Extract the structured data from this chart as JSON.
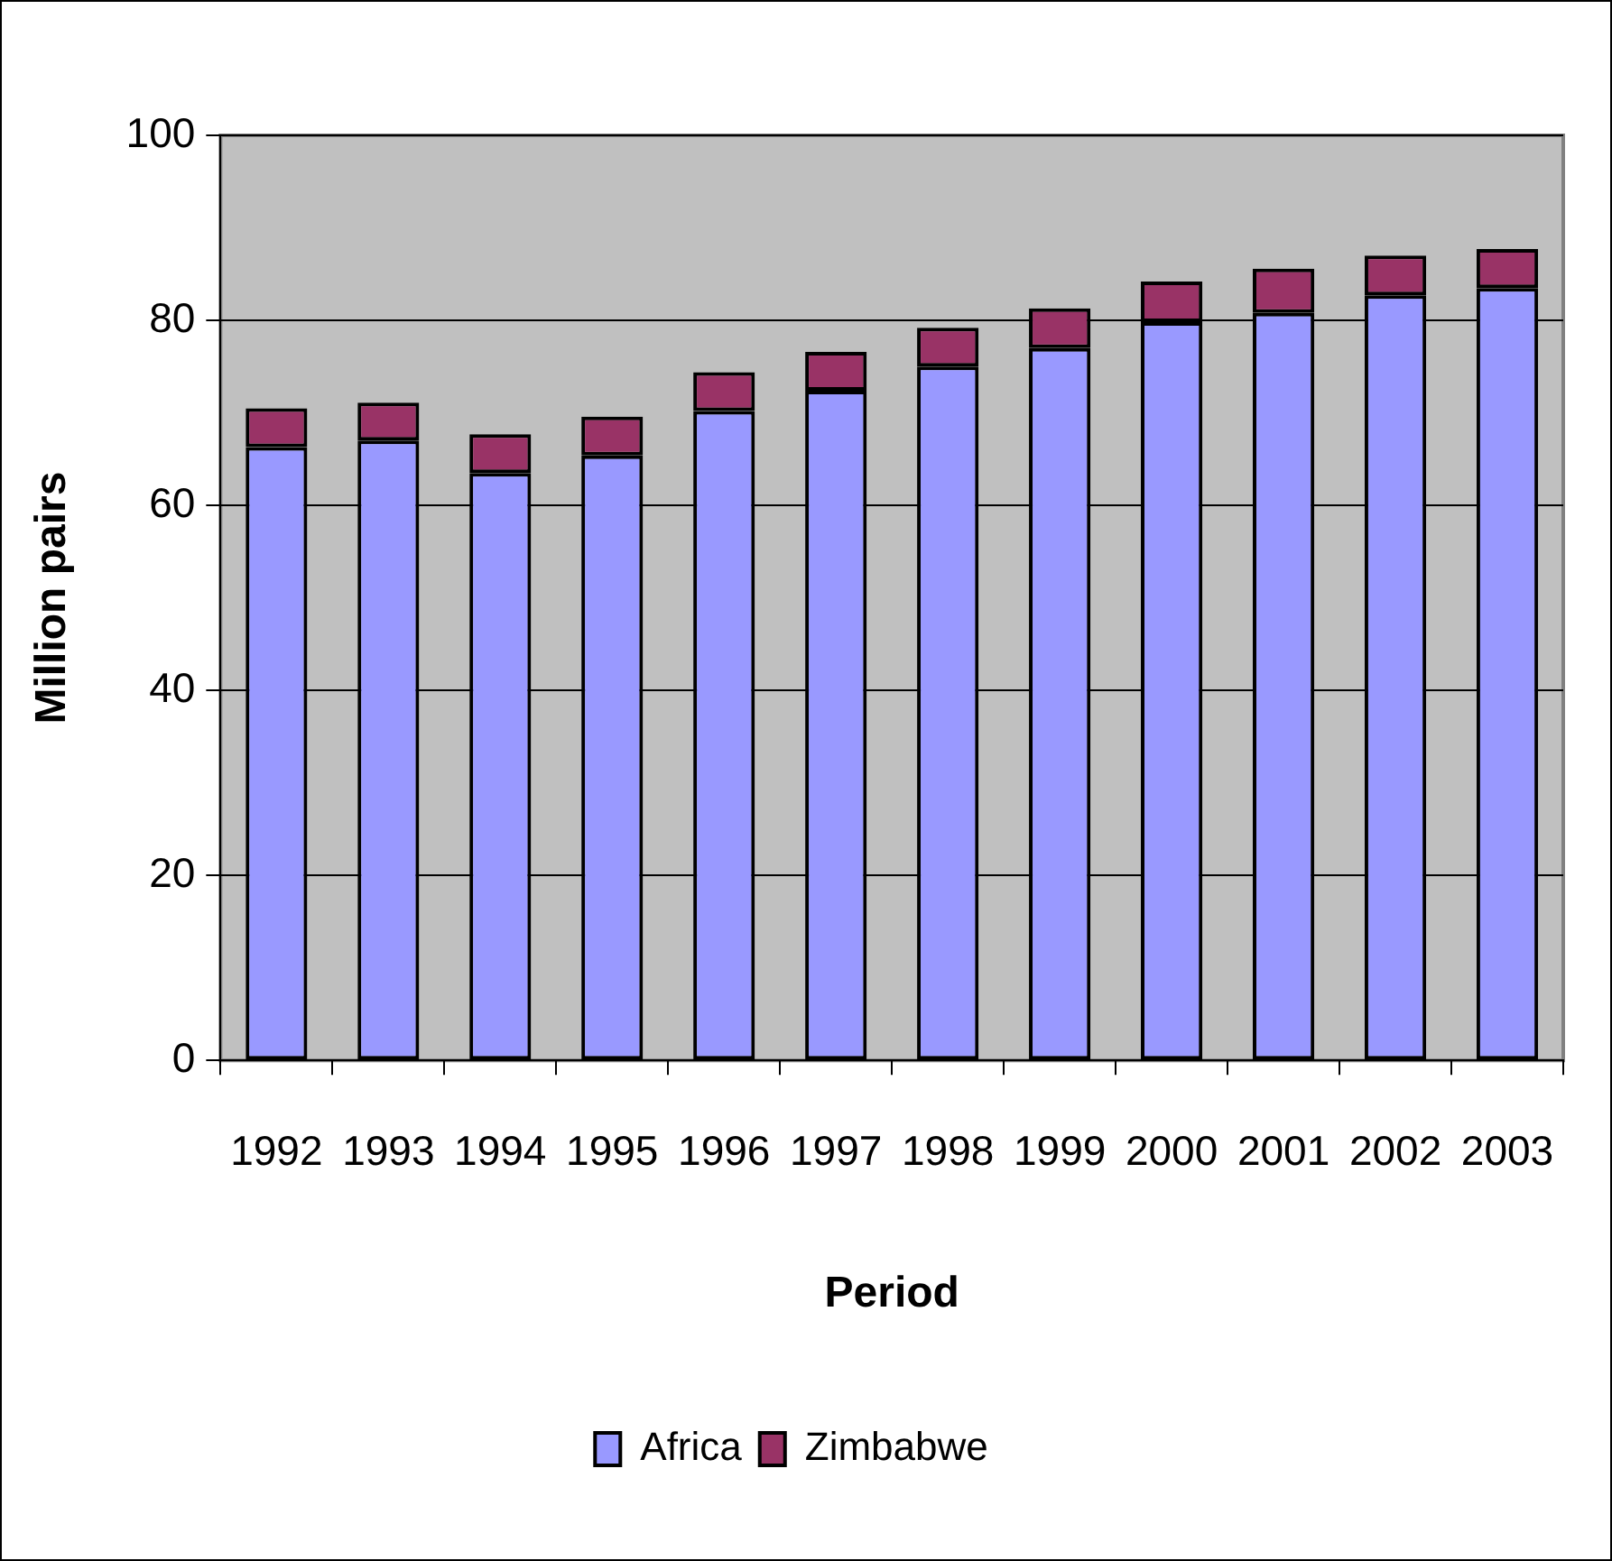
{
  "chart_data": {
    "type": "bar",
    "stacked": true,
    "xlabel": "Period",
    "ylabel": "Million pairs",
    "categories": [
      "1992",
      "1993",
      "1994",
      "1995",
      "1996",
      "1997",
      "1998",
      "1999",
      "2000",
      "2001",
      "2002",
      "2003"
    ],
    "series": [
      {
        "name": "Africa",
        "color": "#9999ff",
        "values": [
          66.3,
          67.0,
          63.5,
          65.4,
          70.2,
          72.4,
          75.0,
          77.0,
          79.8,
          80.8,
          82.7,
          83.5
        ]
      },
      {
        "name": "Zimbabwe",
        "color": "#993366",
        "values": [
          4.2,
          4.1,
          4.2,
          4.2,
          4.2,
          4.2,
          4.2,
          4.3,
          4.4,
          4.8,
          4.3,
          4.2
        ]
      }
    ],
    "ylim": [
      0,
      100
    ],
    "yticks": [
      0,
      20,
      40,
      60,
      80,
      100
    ],
    "grid": "y",
    "legend": "bottom"
  }
}
